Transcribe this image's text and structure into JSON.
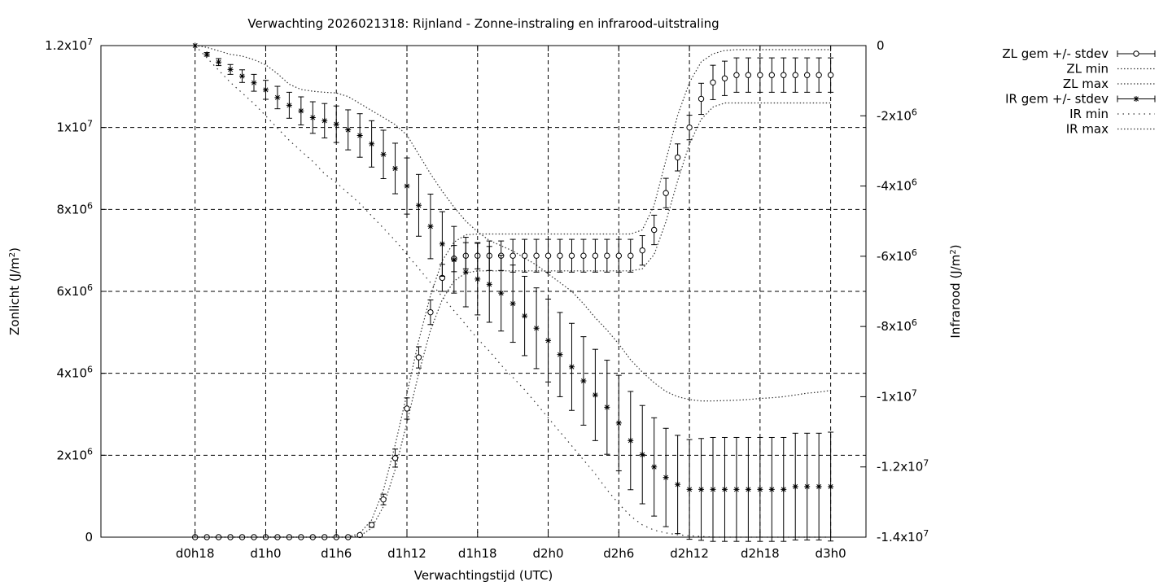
{
  "chart_data": {
    "type": "scatter",
    "title": "Verwachting 2026021318: Rijnland - Zonne-instraling en infrarood-uitstraling",
    "xlabel": "Verwachtingstijd (UTC)",
    "ylabel_left": {
      "base": "Zonlicht (J/m",
      "sup": "2",
      "end": ")"
    },
    "ylabel_right": {
      "base": "Infrarood (J/m",
      "sup": "2",
      "end": ")"
    },
    "x_range_hours": [
      -8,
      57
    ],
    "x_ticks": [
      {
        "h": 0,
        "label": "d0h18"
      },
      {
        "h": 6,
        "label": "d1h0"
      },
      {
        "h": 12,
        "label": "d1h6"
      },
      {
        "h": 18,
        "label": "d1h12"
      },
      {
        "h": 24,
        "label": "d1h18"
      },
      {
        "h": 30,
        "label": "d2h0"
      },
      {
        "h": 36,
        "label": "d2h6"
      },
      {
        "h": 42,
        "label": "d2h12"
      },
      {
        "h": 48,
        "label": "d2h18"
      },
      {
        "h": 54,
        "label": "d3h0"
      }
    ],
    "y_left_range": [
      0,
      12000000
    ],
    "y_left_ticks": [
      {
        "v": 0,
        "base": "0",
        "exp": ""
      },
      {
        "v": 2000000,
        "base": "2x10",
        "exp": "6"
      },
      {
        "v": 4000000,
        "base": "4x10",
        "exp": "6"
      },
      {
        "v": 6000000,
        "base": "6x10",
        "exp": "6"
      },
      {
        "v": 8000000,
        "base": "8x10",
        "exp": "6"
      },
      {
        "v": 10000000,
        "base": "1x10",
        "exp": "7"
      },
      {
        "v": 12000000,
        "base": "1.2x10",
        "exp": "7"
      }
    ],
    "y_right_range": [
      -14000000,
      0
    ],
    "y_right_ticks": [
      {
        "v": 0,
        "base": "0",
        "exp": ""
      },
      {
        "v": -2000000,
        "base": "-2x10",
        "exp": "6"
      },
      {
        "v": -4000000,
        "base": "-4x10",
        "exp": "6"
      },
      {
        "v": -6000000,
        "base": "-6x10",
        "exp": "6"
      },
      {
        "v": -8000000,
        "base": "-8x10",
        "exp": "6"
      },
      {
        "v": -10000000,
        "base": "-1x10",
        "exp": "7"
      },
      {
        "v": -12000000,
        "base": "-1.2x10",
        "exp": "7"
      },
      {
        "v": -14000000,
        "base": "-1.4x10",
        "exp": "7"
      }
    ],
    "grid": true,
    "legend_position": "right-outside",
    "x_hours": [
      0,
      1,
      2,
      3,
      4,
      5,
      6,
      7,
      8,
      9,
      10,
      11,
      12,
      13,
      14,
      15,
      16,
      17,
      18,
      19,
      20,
      21,
      22,
      23,
      24,
      25,
      26,
      27,
      28,
      29,
      30,
      31,
      32,
      33,
      34,
      35,
      36,
      37,
      38,
      39,
      40,
      41,
      42,
      43,
      44,
      45,
      46,
      47,
      48,
      49,
      50,
      51,
      52,
      53,
      54
    ],
    "series": [
      {
        "name": "ZL gem +/- stdev",
        "axis": "left",
        "marker": "circle",
        "style": "errorbars",
        "values": [
          0,
          0,
          0,
          0,
          0,
          0,
          0,
          0,
          0,
          0,
          0,
          0,
          0,
          0,
          50000,
          300000,
          920000,
          1930000,
          3140000,
          4390000,
          5490000,
          6330000,
          6800000,
          6870000,
          6870000,
          6870000,
          6870000,
          6870000,
          6870000,
          6870000,
          6870000,
          6870000,
          6870000,
          6870000,
          6870000,
          6870000,
          6870000,
          6870000,
          7000000,
          7500000,
          8400000,
          9270000,
          10000000,
          10700000,
          11100000,
          11200000,
          11280000,
          11280000,
          11280000,
          11280000,
          11280000,
          11280000,
          11280000,
          11280000,
          11280000
        ],
        "stdev": [
          0,
          0,
          0,
          0,
          0,
          0,
          0,
          0,
          0,
          0,
          0,
          0,
          0,
          0,
          20000,
          60000,
          130000,
          220000,
          260000,
          260000,
          300000,
          330000,
          320000,
          320000,
          320000,
          360000,
          360000,
          400000,
          400000,
          400000,
          400000,
          400000,
          400000,
          400000,
          400000,
          400000,
          400000,
          400000,
          360000,
          360000,
          360000,
          330000,
          300000,
          380000,
          420000,
          420000,
          420000,
          420000,
          420000,
          420000,
          420000,
          420000,
          420000,
          420000,
          420000
        ]
      },
      {
        "name": "ZL min",
        "axis": "left",
        "style": "dotted",
        "values": [
          0,
          0,
          0,
          0,
          0,
          0,
          0,
          0,
          0,
          0,
          0,
          0,
          0,
          0,
          30000,
          220000,
          750000,
          1650000,
          2800000,
          4000000,
          5050000,
          5800000,
          6250000,
          6450000,
          6500000,
          6500000,
          6500000,
          6500000,
          6500000,
          6500000,
          6500000,
          6500000,
          6500000,
          6500000,
          6500000,
          6500000,
          6500000,
          6500000,
          6550000,
          6900000,
          7700000,
          8700000,
          9600000,
          10200000,
          10500000,
          10600000,
          10600000,
          10600000,
          10600000,
          10600000,
          10600000,
          10600000,
          10600000,
          10600000,
          10600000
        ]
      },
      {
        "name": "ZL max",
        "axis": "left",
        "style": "dotted",
        "values": [
          0,
          0,
          0,
          0,
          0,
          0,
          0,
          0,
          0,
          0,
          0,
          0,
          0,
          0,
          100000,
          420000,
          1150000,
          2250000,
          3500000,
          4800000,
          5900000,
          6750000,
          7200000,
          7380000,
          7400000,
          7400000,
          7400000,
          7400000,
          7400000,
          7400000,
          7400000,
          7400000,
          7400000,
          7400000,
          7400000,
          7400000,
          7400000,
          7400000,
          7500000,
          8100000,
          9200000,
          10300000,
          11100000,
          11600000,
          11800000,
          11880000,
          11900000,
          11900000,
          11900000,
          11900000,
          11900000,
          11900000,
          11900000,
          11900000,
          11900000
        ]
      },
      {
        "name": "IR gem +/- stdev",
        "axis": "right",
        "marker": "star",
        "style": "errorbars",
        "values": [
          0,
          -250000,
          -470000,
          -680000,
          -870000,
          -1060000,
          -1260000,
          -1480000,
          -1700000,
          -1860000,
          -2050000,
          -2140000,
          -2240000,
          -2400000,
          -2560000,
          -2800000,
          -3100000,
          -3500000,
          -4000000,
          -4550000,
          -5150000,
          -5650000,
          -6100000,
          -6450000,
          -6650000,
          -6800000,
          -7050000,
          -7350000,
          -7700000,
          -8050000,
          -8400000,
          -8800000,
          -9150000,
          -9550000,
          -9950000,
          -10300000,
          -10750000,
          -11250000,
          -11650000,
          -12000000,
          -12300000,
          -12500000,
          -12640000,
          -12640000,
          -12640000,
          -12640000,
          -12640000,
          -12640000,
          -12640000,
          -12640000,
          -12640000,
          -12560000,
          -12560000,
          -12560000,
          -12560000
        ],
        "stdev": [
          0,
          50000,
          100000,
          140000,
          180000,
          240000,
          270000,
          320000,
          370000,
          400000,
          450000,
          490000,
          520000,
          570000,
          620000,
          660000,
          690000,
          720000,
          800000,
          880000,
          920000,
          920000,
          950000,
          990000,
          1020000,
          1080000,
          1080000,
          1100000,
          1130000,
          1150000,
          1180000,
          1200000,
          1240000,
          1260000,
          1300000,
          1340000,
          1360000,
          1400000,
          1400000,
          1400000,
          1400000,
          1400000,
          1420000,
          1450000,
          1480000,
          1480000,
          1480000,
          1480000,
          1480000,
          1480000,
          1480000,
          1520000,
          1520000,
          1520000,
          1550000
        ]
      },
      {
        "name": "IR min",
        "axis": "right",
        "style": "dotted",
        "values": [
          0,
          -350000,
          -700000,
          -1050000,
          -1350000,
          -1650000,
          -2000000,
          -2350000,
          -2700000,
          -3000000,
          -3300000,
          -3650000,
          -3900000,
          -4200000,
          -4500000,
          -4850000,
          -5200000,
          -5550000,
          -5950000,
          -6350000,
          -6750000,
          -7150000,
          -7550000,
          -7950000,
          -8350000,
          -8700000,
          -9100000,
          -9450000,
          -9800000,
          -10200000,
          -10600000,
          -11000000,
          -11400000,
          -11800000,
          -12200000,
          -12650000,
          -13050000,
          -13400000,
          -13650000,
          -13800000,
          -13880000,
          -13930000,
          -13960000,
          -13980000,
          -14000000,
          -14000000,
          -14000000,
          -14000000,
          -14000000,
          -14000000,
          -14000000,
          -14000000,
          -14000000,
          -14000000,
          -14000000
        ]
      },
      {
        "name": "IR max",
        "axis": "right",
        "style": "dotted",
        "values": [
          0,
          -50000,
          -150000,
          -250000,
          -300000,
          -400000,
          -550000,
          -800000,
          -1100000,
          -1250000,
          -1300000,
          -1330000,
          -1350000,
          -1450000,
          -1650000,
          -1850000,
          -2050000,
          -2250000,
          -2550000,
          -3100000,
          -3650000,
          -4150000,
          -4600000,
          -5000000,
          -5300000,
          -5550000,
          -5700000,
          -5850000,
          -6050000,
          -6250000,
          -6500000,
          -6750000,
          -7000000,
          -7350000,
          -7750000,
          -8100000,
          -8500000,
          -8950000,
          -9300000,
          -9600000,
          -9850000,
          -10000000,
          -10080000,
          -10120000,
          -10120000,
          -10110000,
          -10100000,
          -10080000,
          -10050000,
          -10030000,
          -10000000,
          -9950000,
          -9900000,
          -9870000,
          -9820000
        ]
      }
    ]
  }
}
